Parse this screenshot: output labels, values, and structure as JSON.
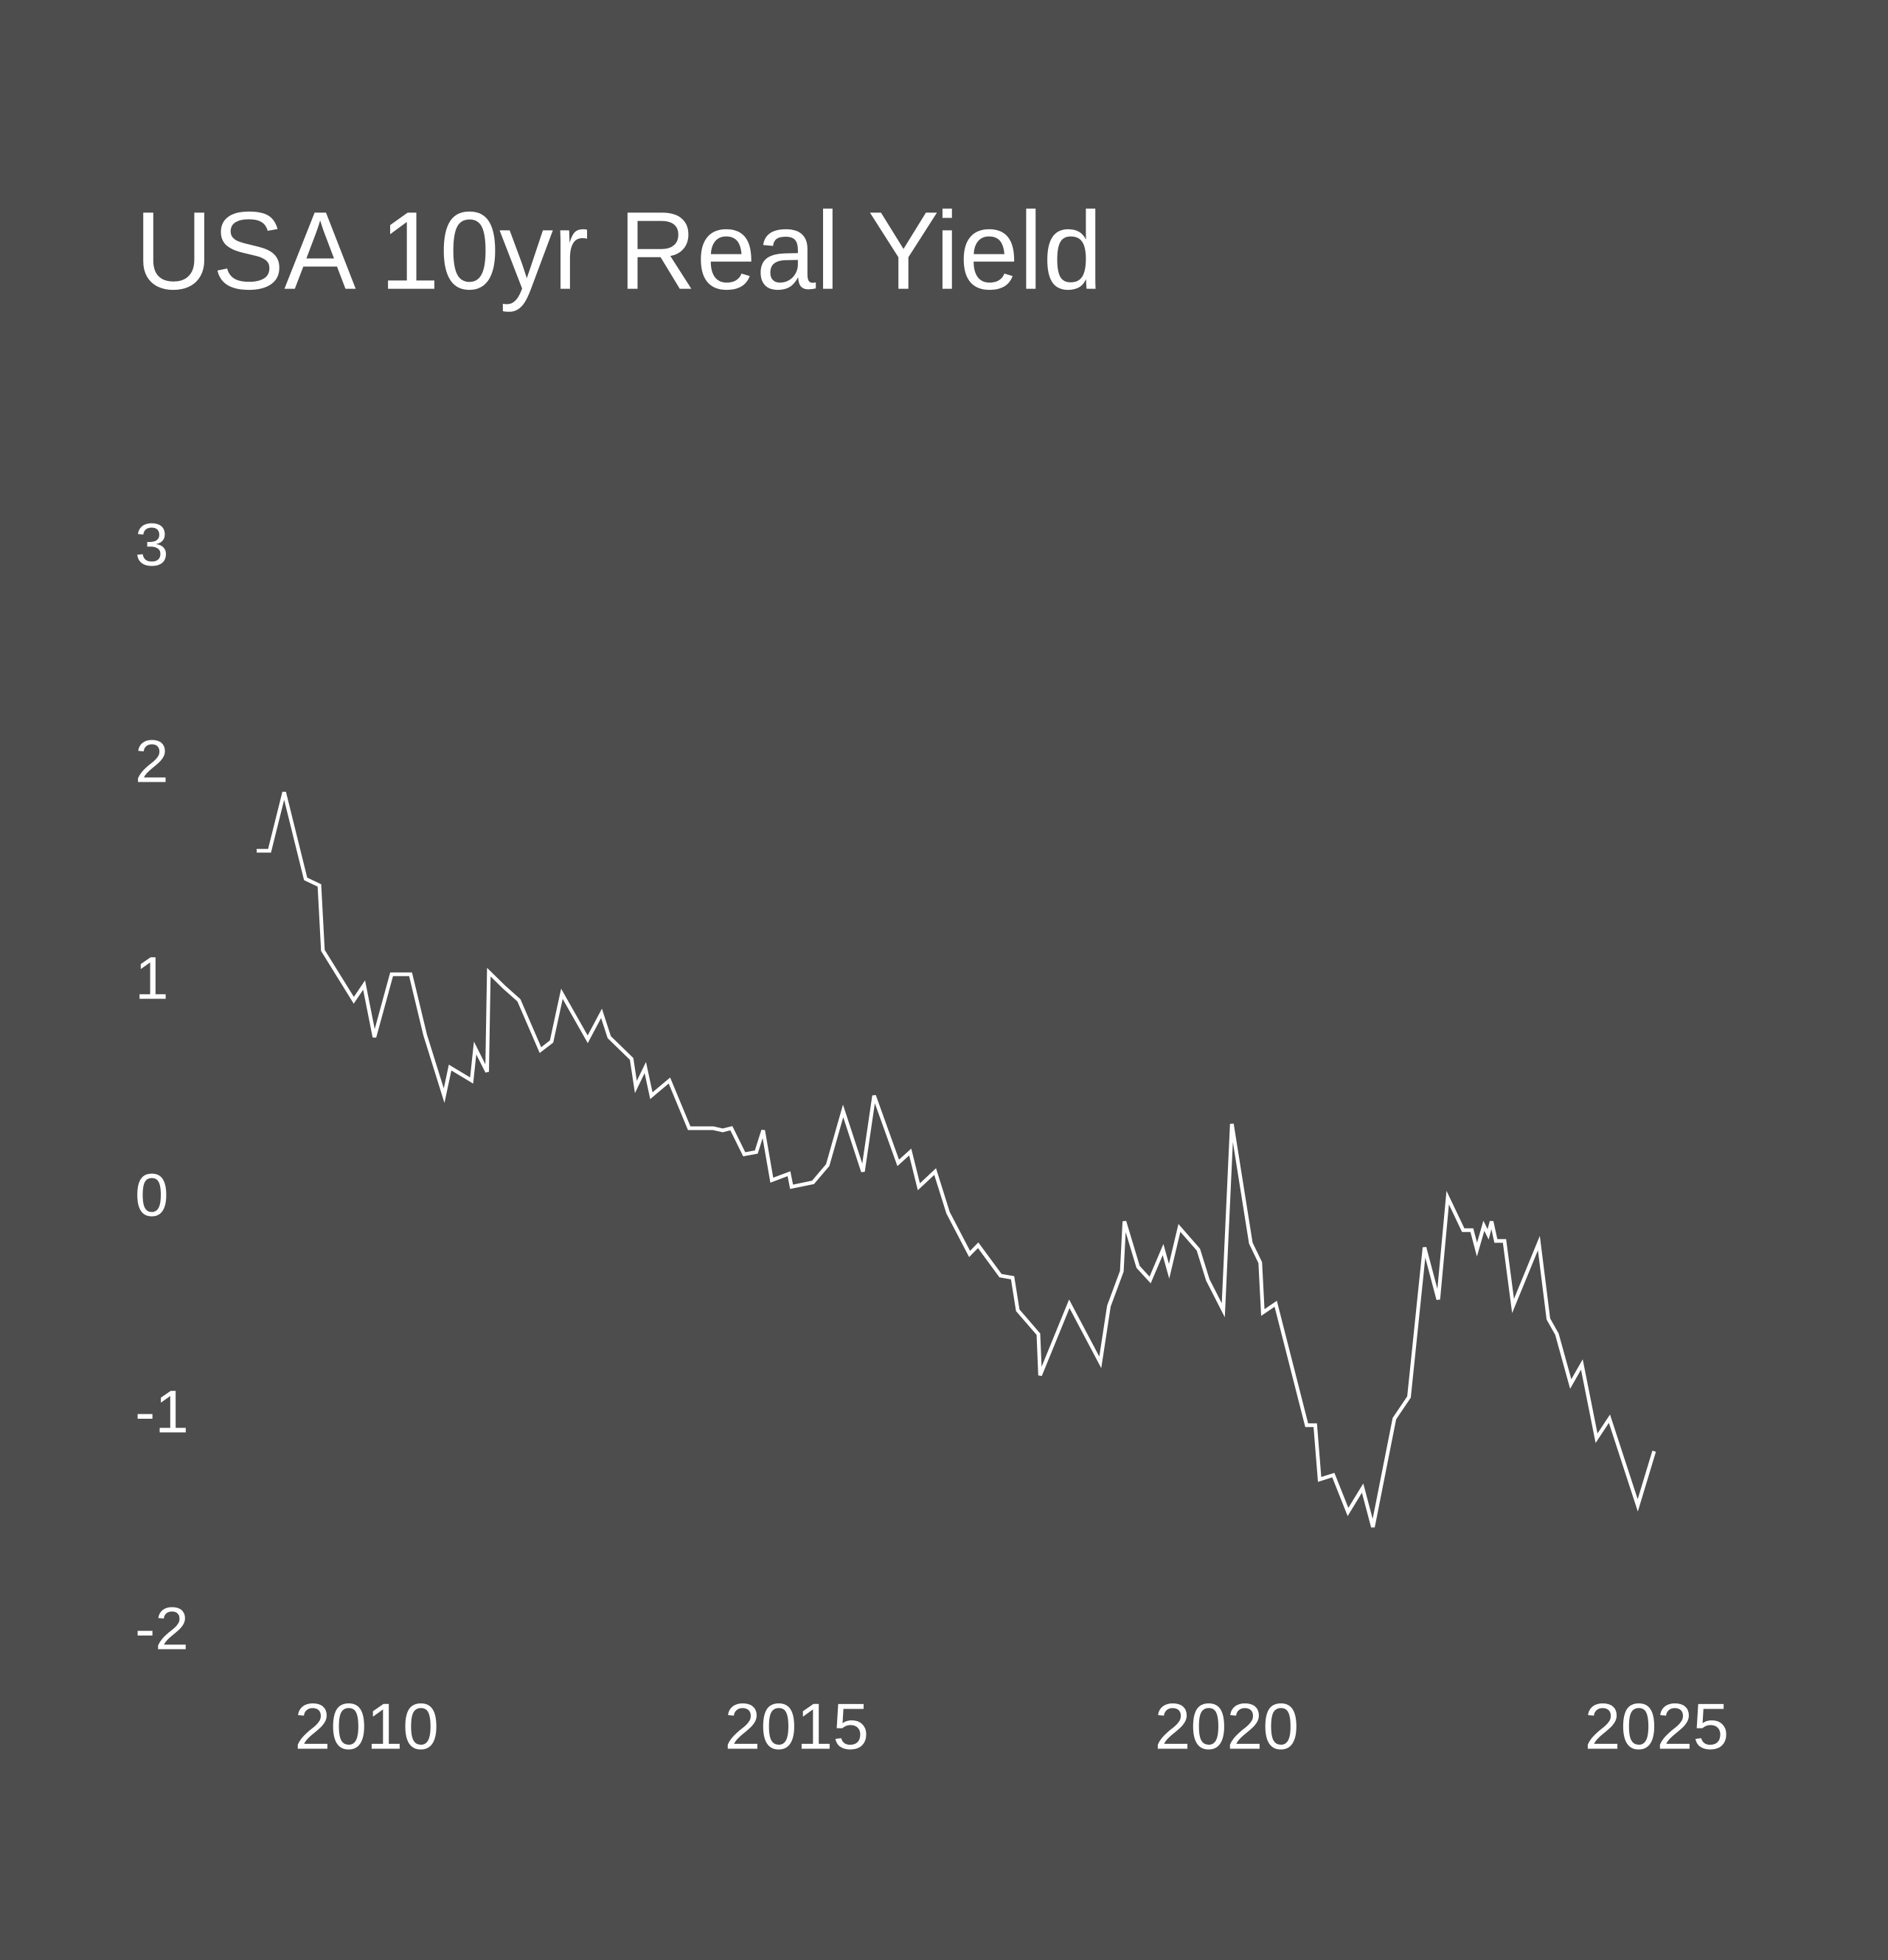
{
  "chart_data": {
    "type": "line",
    "title": "USA 10yr Real Yield",
    "color": "#ffffff",
    "xlim": [
      2008,
      2026
    ],
    "xticks": [
      2010,
      2015,
      2020,
      2025
    ],
    "ylim": [
      -2,
      3
    ],
    "yticks": [
      -2,
      -1,
      0,
      1,
      2,
      3
    ],
    "x": [
      2008.72,
      2008.87,
      2009.04,
      2009.29,
      2009.45,
      2009.49,
      2009.85,
      2009.97,
      2010.09,
      2010.29,
      2010.51,
      2010.68,
      2010.9,
      2010.97,
      2011.22,
      2011.26,
      2011.4,
      2011.42,
      2011.6,
      2011.77,
      2012.02,
      2012.15,
      2012.27,
      2012.57,
      2012.73,
      2012.82,
      2013.08,
      2013.13,
      2013.24,
      2013.31,
      2013.52,
      2013.75,
      2014.03,
      2014.14,
      2014.24,
      2014.39,
      2014.53,
      2014.61,
      2014.71,
      2014.91,
      2014.94,
      2015.19,
      2015.36,
      2015.54,
      2015.77,
      2015.9,
      2016.18,
      2016.32,
      2016.42,
      2016.61,
      2016.76,
      2017.01,
      2017.11,
      2017.37,
      2017.51,
      2017.57,
      2017.81,
      2017.83,
      2018.17,
      2018.53,
      2018.63,
      2018.78,
      2018.81,
      2018.97,
      2019.11,
      2019.26,
      2019.33,
      2019.45,
      2019.67,
      2019.78,
      2019.96,
      2020.06,
      2020.28,
      2020.39,
      2020.42,
      2020.57,
      2020.93,
      2021.03,
      2021.08,
      2021.24,
      2021.41,
      2021.58,
      2021.7,
      2021.95,
      2022.12,
      2022.3,
      2022.46,
      2022.57,
      2022.75,
      2022.85,
      2022.91,
      2022.99,
      2023.04,
      2023.08,
      2023.13,
      2023.23,
      2023.33,
      2023.63,
      2023.74,
      2023.84,
      2024.0,
      2024.13,
      2024.3,
      2024.45,
      2024.78,
      2024.97
    ],
    "values": [
      1.61,
      1.61,
      1.88,
      1.48,
      1.45,
      1.15,
      0.92,
      0.99,
      0.75,
      1.04,
      1.04,
      0.76,
      0.48,
      0.61,
      0.55,
      0.7,
      0.59,
      1.05,
      0.98,
      0.92,
      0.69,
      0.73,
      0.95,
      0.74,
      0.86,
      0.75,
      0.65,
      0.52,
      0.61,
      0.48,
      0.55,
      0.33,
      0.33,
      0.32,
      0.33,
      0.21,
      0.22,
      0.32,
      0.09,
      0.12,
      0.06,
      0.08,
      0.16,
      0.41,
      0.13,
      0.48,
      0.17,
      0.22,
      0.06,
      0.13,
      -0.06,
      -0.25,
      -0.21,
      -0.35,
      -0.36,
      -0.51,
      -0.62,
      -0.81,
      -0.48,
      -0.75,
      -0.49,
      -0.33,
      -0.1,
      -0.31,
      -0.37,
      -0.23,
      -0.33,
      -0.13,
      -0.23,
      -0.37,
      -0.51,
      0.35,
      -0.2,
      -0.29,
      -0.52,
      -0.48,
      -1.04,
      -1.04,
      -1.29,
      -1.27,
      -1.44,
      -1.33,
      -1.51,
      -1.01,
      -0.91,
      -0.22,
      -0.46,
      0.01,
      -0.14,
      -0.14,
      -0.23,
      -0.12,
      -0.16,
      -0.1,
      -0.19,
      -0.19,
      -0.49,
      -0.2,
      -0.55,
      -0.62,
      -0.85,
      -0.76,
      -1.1,
      -1.01,
      -1.41,
      -1.16
    ]
  }
}
